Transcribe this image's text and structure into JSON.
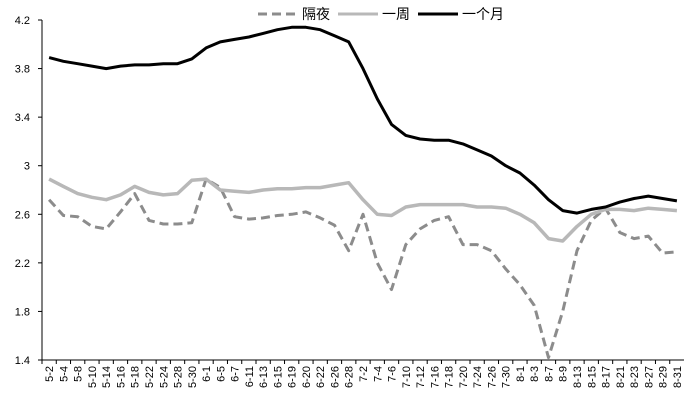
{
  "chart_data": {
    "type": "line",
    "categories": [
      "5-2",
      "5-4",
      "5-8",
      "5-10",
      "5-14",
      "5-16",
      "5-18",
      "5-22",
      "5-24",
      "5-28",
      "5-30",
      "6-1",
      "6-5",
      "6-7",
      "6-11",
      "6-13",
      "6-15",
      "6-19",
      "6-20",
      "6-22",
      "6-26",
      "6-28",
      "7-2",
      "7-4",
      "7-6",
      "7-10",
      "7-12",
      "7-16",
      "7-18",
      "7-20",
      "7-24",
      "7-26",
      "7-30",
      "8-1",
      "8-3",
      "8-7",
      "8-9",
      "8-13",
      "8-15",
      "8-17",
      "8-21",
      "8-23",
      "8-27",
      "8-29",
      "8-31"
    ],
    "series": [
      {
        "name": "隔夜",
        "color": "#8c8c8c",
        "dashed": true,
        "values": [
          2.72,
          2.59,
          2.58,
          2.5,
          2.48,
          2.62,
          2.77,
          2.55,
          2.52,
          2.52,
          2.53,
          2.89,
          2.82,
          2.58,
          2.56,
          2.57,
          2.59,
          2.6,
          2.62,
          2.57,
          2.51,
          2.3,
          2.6,
          2.2,
          1.98,
          2.35,
          2.48,
          2.55,
          2.58,
          2.35,
          2.35,
          2.3,
          2.15,
          2.02,
          1.85,
          1.42,
          1.8,
          2.3,
          2.55,
          2.65,
          2.45,
          2.4,
          2.42,
          2.28,
          2.29
        ]
      },
      {
        "name": "一周",
        "color": "#b8b8b8",
        "dashed": false,
        "values": [
          2.89,
          2.83,
          2.77,
          2.74,
          2.72,
          2.76,
          2.83,
          2.78,
          2.76,
          2.77,
          2.88,
          2.89,
          2.8,
          2.79,
          2.78,
          2.8,
          2.81,
          2.81,
          2.82,
          2.82,
          2.84,
          2.86,
          2.72,
          2.6,
          2.59,
          2.66,
          2.68,
          2.68,
          2.68,
          2.68,
          2.66,
          2.66,
          2.65,
          2.6,
          2.53,
          2.4,
          2.38,
          2.5,
          2.6,
          2.64,
          2.64,
          2.63,
          2.65,
          2.64,
          2.63
        ]
      },
      {
        "name": "一个月",
        "color": "#000000",
        "dashed": false,
        "values": [
          3.89,
          3.86,
          3.84,
          3.82,
          3.8,
          3.82,
          3.83,
          3.83,
          3.84,
          3.84,
          3.88,
          3.97,
          4.02,
          4.04,
          4.06,
          4.09,
          4.12,
          4.14,
          4.14,
          4.12,
          4.07,
          4.02,
          3.8,
          3.55,
          3.34,
          3.25,
          3.22,
          3.21,
          3.21,
          3.18,
          3.13,
          3.08,
          3.0,
          2.94,
          2.84,
          2.72,
          2.63,
          2.61,
          2.64,
          2.66,
          2.7,
          2.73,
          2.75,
          2.73,
          2.71
        ]
      }
    ],
    "ylim": [
      1.4,
      4.2
    ],
    "yticks": [
      1.4,
      1.8,
      2.2,
      2.6,
      3,
      3.4,
      3.8,
      4.2
    ],
    "grid": false,
    "legend": "top"
  }
}
